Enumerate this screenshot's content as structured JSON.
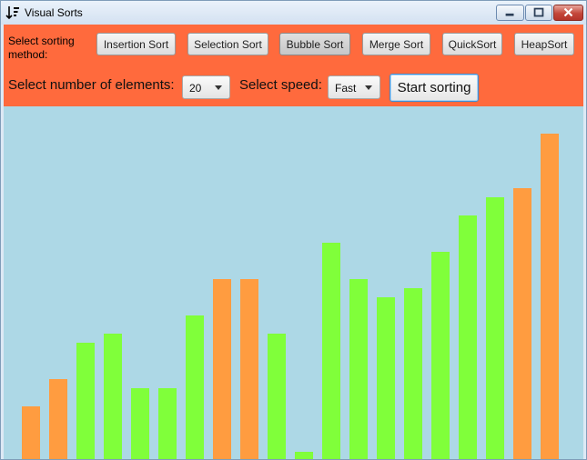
{
  "window": {
    "title": "Visual Sorts",
    "icon": "sort-descending-icon"
  },
  "controls": {
    "method_label": "Select sorting method:",
    "methods": [
      "Insertion Sort",
      "Selection Sort",
      "Bubble Sort",
      "Merge Sort",
      "QuickSort",
      "HeapSort"
    ],
    "selected_method": "Bubble Sort",
    "elements_label": "Select number of elements:",
    "elements_value": "20",
    "speed_label": "Select speed:",
    "speed_value": "Fast",
    "start_label": "Start sorting"
  },
  "colors": {
    "toolbar": "#ff6a3d",
    "canvas": "#add8e6",
    "bar_green": "#80ff3a",
    "bar_orange": "#ff9c40"
  },
  "bars": [
    {
      "value": 6,
      "color": "orange"
    },
    {
      "value": 9,
      "color": "orange"
    },
    {
      "value": 13,
      "color": "green"
    },
    {
      "value": 14,
      "color": "green"
    },
    {
      "value": 8,
      "color": "green"
    },
    {
      "value": 8,
      "color": "green"
    },
    {
      "value": 16,
      "color": "green"
    },
    {
      "value": 20,
      "color": "orange"
    },
    {
      "value": 20,
      "color": "orange"
    },
    {
      "value": 14,
      "color": "green"
    },
    {
      "value": 1,
      "color": "green"
    },
    {
      "value": 24,
      "color": "green"
    },
    {
      "value": 20,
      "color": "green"
    },
    {
      "value": 18,
      "color": "green"
    },
    {
      "value": 19,
      "color": "green"
    },
    {
      "value": 23,
      "color": "green"
    },
    {
      "value": 27,
      "color": "green"
    },
    {
      "value": 29,
      "color": "green"
    },
    {
      "value": 30,
      "color": "orange"
    },
    {
      "value": 36,
      "color": "orange"
    }
  ]
}
